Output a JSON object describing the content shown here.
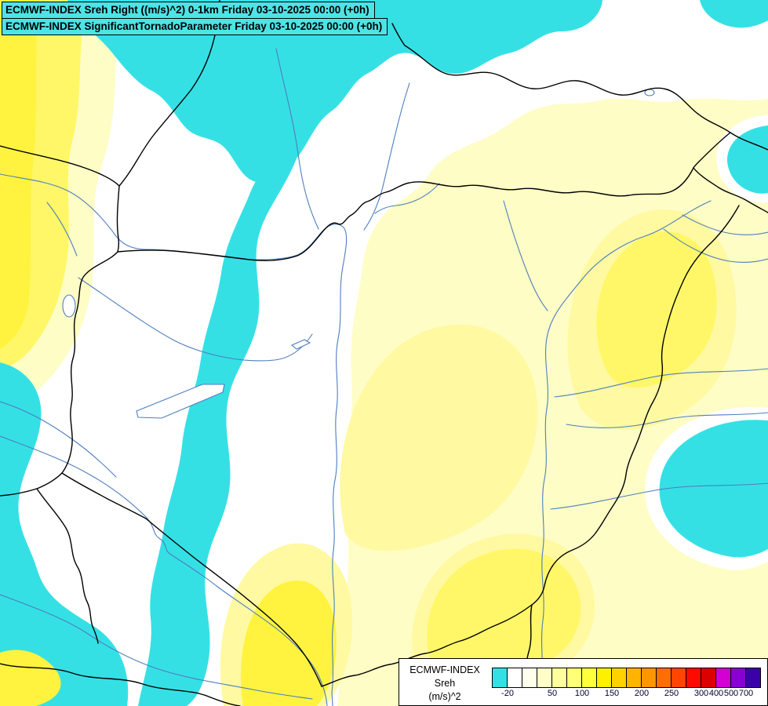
{
  "header": {
    "line1": "ECMWF-INDEX Sreh Right ((m/s)^2) 0-1km Friday 03-10-2025 00:00 (+0h)",
    "line2": "ECMWF-INDEX SignificantTornadoParameter Friday 03-10-2025 00:00 (+0h)",
    "background": "#4DE4E6"
  },
  "legend": {
    "model": "ECMWF-INDEX",
    "parameter": "Sreh",
    "unit": "(m/s)^2",
    "palette": [
      "#35E0E5",
      "#FFFFFF",
      "#FFFFEB",
      "#FFFFC8",
      "#FFFF9E",
      "#FFFF78",
      "#FFFF3C",
      "#FFF000",
      "#FFD200",
      "#FFB400",
      "#FF9600",
      "#FF6E00",
      "#FF4600",
      "#FF0A00",
      "#DC0000",
      "#D200D2",
      "#8A00D2",
      "#3C00AA"
    ],
    "ticks": [
      {
        "label": "-20",
        "cell": 1
      },
      {
        "label": "50",
        "cell": 4
      },
      {
        "label": "100",
        "cell": 6
      },
      {
        "label": "150",
        "cell": 8
      },
      {
        "label": "200",
        "cell": 10
      },
      {
        "label": "250",
        "cell": 12
      },
      {
        "label": "300",
        "cell": 14
      },
      {
        "label": "400",
        "cell": 15
      },
      {
        "label": "500",
        "cell": 16
      },
      {
        "label": "700",
        "cell": 17
      }
    ]
  },
  "map": {
    "fill_colors": {
      "cyan": "#35E0E5",
      "white": "#FFFFFF",
      "pale_yellow": "#FFFDC6",
      "light_yellow": "#FFF9A2",
      "yellow": "#FFF767",
      "strong_yellow": "#FFF33F",
      "country_border": "#000000",
      "river": "#4D7EBE"
    }
  },
  "chart_data": {
    "type": "heatmap",
    "title": "ECMWF-INDEX Sreh Right ((m/s)^2) 0-1km",
    "overlay": "ECMWF-INDEX SignificantTornadoParameter",
    "valid_time": "Friday 03-10-2025 00:00 (+0h)",
    "legend_title": "ECMWF-INDEX Sreh (m/s)^2",
    "legend_levels": [
      -20,
      50,
      100,
      150,
      200,
      250,
      300,
      400,
      500,
      700
    ],
    "legend_colors": [
      "#35E0E5",
      "#FFFFFF",
      "#FFFFEB",
      "#FFFFC8",
      "#FFFF9E",
      "#FFFF78",
      "#FFFF3C",
      "#FFF000",
      "#FFD200",
      "#FFB400",
      "#FF9600",
      "#FF6E00",
      "#FF4600",
      "#FF0A00",
      "#DC0000",
      "#D200D2",
      "#8A00D2",
      "#3C00AA"
    ]
  }
}
